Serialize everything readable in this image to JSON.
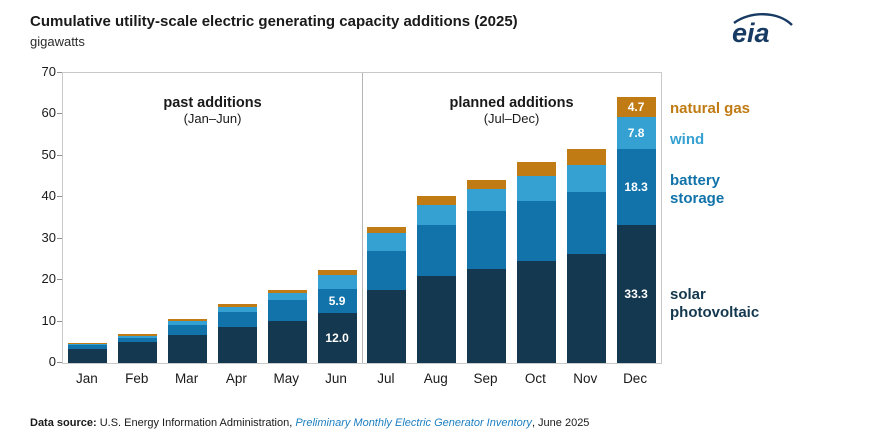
{
  "logo": {
    "text": "eia"
  },
  "chart_data": {
    "type": "bar",
    "stacked": true,
    "title": "Cumulative utility-scale electric generating capacity additions (2025)",
    "units": "gigawatts",
    "categories": [
      "Jan",
      "Feb",
      "Mar",
      "Apr",
      "May",
      "Jun",
      "Jul",
      "Aug",
      "Sep",
      "Oct",
      "Nov",
      "Dec"
    ],
    "ylim": [
      0,
      70
    ],
    "yticks": [
      0,
      10,
      20,
      30,
      40,
      50,
      60,
      70
    ],
    "grid": false,
    "legend_position": "right",
    "series": [
      {
        "name": "solar photovoltaic",
        "color": "#14384f",
        "values": [
          3.5,
          5.0,
          6.7,
          8.7,
          10.2,
          12.0,
          17.6,
          21.0,
          22.7,
          24.6,
          26.2,
          33.3
        ]
      },
      {
        "name": "battery storage",
        "color": "#1173a9",
        "values": [
          0.8,
          1.1,
          2.4,
          3.6,
          5.0,
          5.9,
          9.5,
          12.3,
          14.0,
          14.5,
          15.1,
          18.3
        ]
      },
      {
        "name": "wind",
        "color": "#35a1d2",
        "values": [
          0.3,
          0.5,
          1.0,
          1.3,
          1.7,
          3.4,
          4.3,
          4.9,
          5.2,
          6.0,
          6.4,
          7.8
        ]
      },
      {
        "name": "natural gas",
        "color": "#c07b14",
        "values": [
          0.2,
          0.3,
          0.5,
          0.6,
          0.8,
          1.2,
          1.4,
          2.0,
          2.3,
          3.5,
          4.0,
          4.7
        ]
      }
    ],
    "annotations": {
      "past": {
        "label": "past additions",
        "sub": "(Jan–Jun)"
      },
      "planned": {
        "label": "planned additions",
        "sub": "(Jul–Dec)"
      }
    },
    "bar_labels": [
      {
        "month": "Jun",
        "series": "battery storage",
        "text": "5.9"
      },
      {
        "month": "Jun",
        "series": "solar photovoltaic",
        "text": "12.0"
      },
      {
        "month": "Dec",
        "series": "natural gas",
        "text": "4.7"
      },
      {
        "month": "Dec",
        "series": "wind",
        "text": "7.8"
      },
      {
        "month": "Dec",
        "series": "battery storage",
        "text": "18.3"
      },
      {
        "month": "Dec",
        "series": "solar photovoltaic",
        "text": "33.3"
      }
    ],
    "legend": [
      {
        "label": "natural gas",
        "color": "#c07b14"
      },
      {
        "label": "wind",
        "color": "#35a1d2"
      },
      {
        "label": "battery storage",
        "color": "#1173a9"
      },
      {
        "label": "solar photovoltaic",
        "color": "#14384f"
      }
    ]
  },
  "footer": {
    "prefix": "Data source:",
    "body": " U.S. Energy Information Administration, ",
    "link": "Preliminary Monthly Electric Generator Inventory",
    "suffix": ", June 2025"
  }
}
